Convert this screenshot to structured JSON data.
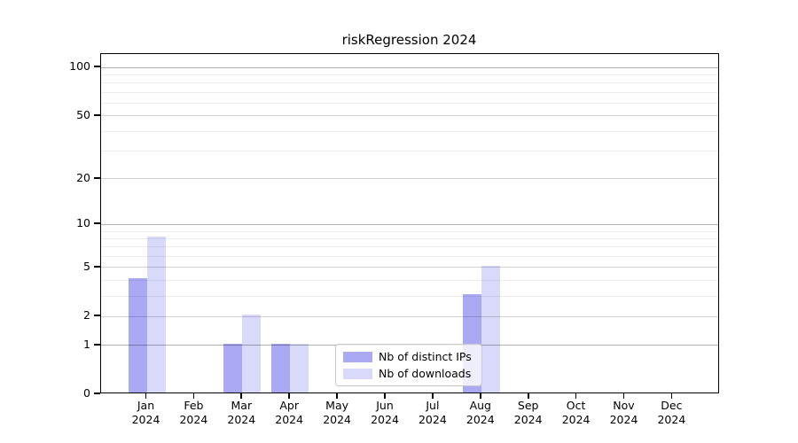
{
  "chart_data": {
    "type": "bar",
    "title": "riskRegression 2024",
    "categories": [
      "Jan",
      "Feb",
      "Mar",
      "Apr",
      "May",
      "Jun",
      "Jul",
      "Aug",
      "Sep",
      "Oct",
      "Nov",
      "Dec"
    ],
    "year_label": "2024",
    "series": [
      {
        "name": "Nb of distinct IPs",
        "color": "#a9a9f4",
        "values": [
          4,
          0,
          1,
          1,
          0,
          0,
          0,
          3,
          0,
          0,
          0,
          0
        ]
      },
      {
        "name": "Nb of downloads",
        "color": "#d9d9fa",
        "values": [
          8,
          0,
          2,
          1,
          0,
          0,
          0,
          5,
          0,
          0,
          0,
          0
        ]
      }
    ],
    "y_axis": {
      "scale": "log10(1+v)",
      "ticks": [
        0,
        1,
        2,
        5,
        10,
        20,
        50,
        100
      ],
      "minor_ticks": [
        3,
        4,
        6,
        7,
        8,
        9,
        30,
        40,
        60,
        70,
        80,
        90
      ],
      "max": 119
    },
    "grid": "horizontal",
    "legend_position": "inside-bottom-center-right",
    "colors": {
      "grid_major_power10": "rgba(0,0,0,0.30)",
      "grid_major": "rgba(0,0,0,0.17)",
      "grid_minor": "rgba(0,0,0,0.07)",
      "axis": "#000000",
      "background": "#ffffff"
    }
  }
}
